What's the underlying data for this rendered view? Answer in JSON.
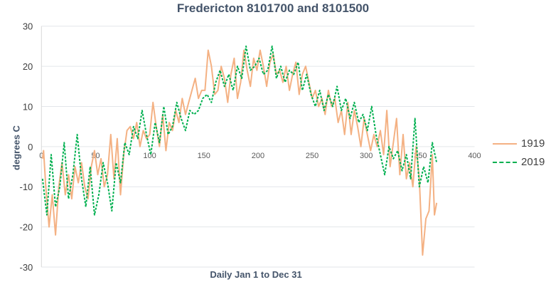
{
  "chart_data": {
    "type": "line",
    "title": "Fredericton 8101700 and 8101500",
    "xlabel": "Daily Jan 1 to Dec 31",
    "ylabel": "degrees C",
    "xlim": [
      0,
      400
    ],
    "ylim": [
      -30,
      30
    ],
    "xticks": [
      0,
      50,
      100,
      150,
      200,
      250,
      300,
      350,
      400
    ],
    "yticks": [
      -30,
      -20,
      -10,
      0,
      10,
      20,
      30
    ],
    "grid": "horizontal",
    "legend": "right",
    "series": [
      {
        "name": "1919",
        "color": "#f4b183",
        "style": "solid",
        "points": [
          [
            1,
            -3
          ],
          [
            2,
            -1
          ],
          [
            4,
            -10
          ],
          [
            7,
            -20
          ],
          [
            10,
            -12
          ],
          [
            13,
            -22
          ],
          [
            16,
            -10
          ],
          [
            19,
            -4
          ],
          [
            22,
            -12
          ],
          [
            25,
            -7
          ],
          [
            28,
            -13
          ],
          [
            31,
            -5
          ],
          [
            34,
            -9
          ],
          [
            37,
            -4
          ],
          [
            40,
            -10
          ],
          [
            43,
            -13
          ],
          [
            46,
            -5
          ],
          [
            49,
            -1
          ],
          [
            52,
            -7
          ],
          [
            55,
            -3
          ],
          [
            58,
            -10
          ],
          [
            61,
            -7
          ],
          [
            64,
            3
          ],
          [
            67,
            -8
          ],
          [
            70,
            2
          ],
          [
            73,
            -12
          ],
          [
            76,
            -2
          ],
          [
            79,
            4
          ],
          [
            82,
            5
          ],
          [
            85,
            2
          ],
          [
            88,
            6
          ],
          [
            91,
            0
          ],
          [
            94,
            4
          ],
          [
            97,
            2
          ],
          [
            100,
            3
          ],
          [
            103,
            11
          ],
          [
            106,
            5
          ],
          [
            109,
            0
          ],
          [
            112,
            8
          ],
          [
            115,
            -1
          ],
          [
            118,
            6
          ],
          [
            121,
            4
          ],
          [
            124,
            9
          ],
          [
            127,
            6
          ],
          [
            130,
            12
          ],
          [
            133,
            8
          ],
          [
            136,
            11
          ],
          [
            139,
            14
          ],
          [
            142,
            17
          ],
          [
            145,
            12
          ],
          [
            148,
            14
          ],
          [
            151,
            14
          ],
          [
            154,
            24
          ],
          [
            157,
            20
          ],
          [
            160,
            13
          ],
          [
            163,
            14
          ],
          [
            166,
            20
          ],
          [
            169,
            17
          ],
          [
            172,
            11
          ],
          [
            175,
            18
          ],
          [
            178,
            22
          ],
          [
            181,
            12
          ],
          [
            184,
            16
          ],
          [
            187,
            24
          ],
          [
            190,
            19
          ],
          [
            193,
            15
          ],
          [
            196,
            22
          ],
          [
            199,
            19
          ],
          [
            202,
            24
          ],
          [
            205,
            20
          ],
          [
            208,
            15
          ],
          [
            211,
            21
          ],
          [
            214,
            23
          ],
          [
            217,
            18
          ],
          [
            220,
            19
          ],
          [
            223,
            16
          ],
          [
            226,
            20
          ],
          [
            229,
            14
          ],
          [
            232,
            18
          ],
          [
            235,
            21
          ],
          [
            238,
            13
          ],
          [
            241,
            18
          ],
          [
            244,
            20
          ],
          [
            247,
            16
          ],
          [
            250,
            12
          ],
          [
            253,
            14
          ],
          [
            256,
            10
          ],
          [
            259,
            12
          ],
          [
            262,
            8
          ],
          [
            265,
            14
          ],
          [
            268,
            10
          ],
          [
            271,
            12
          ],
          [
            274,
            6
          ],
          [
            277,
            9
          ],
          [
            280,
            3
          ],
          [
            283,
            11
          ],
          [
            286,
            3
          ],
          [
            289,
            9
          ],
          [
            292,
            5
          ],
          [
            295,
            0
          ],
          [
            298,
            7
          ],
          [
            301,
            3
          ],
          [
            304,
            -1
          ],
          [
            307,
            3
          ],
          [
            310,
            0
          ],
          [
            313,
            4
          ],
          [
            316,
            -2
          ],
          [
            319,
            9
          ],
          [
            322,
            -5
          ],
          [
            325,
            1
          ],
          [
            328,
            7
          ],
          [
            331,
            -7
          ],
          [
            334,
            3
          ],
          [
            337,
            -8
          ],
          [
            340,
            -4
          ],
          [
            343,
            -10
          ],
          [
            346,
            0
          ],
          [
            349,
            -8
          ],
          [
            352,
            -27
          ],
          [
            355,
            -18
          ],
          [
            358,
            -16
          ],
          [
            361,
            -2
          ],
          [
            363,
            -17
          ],
          [
            365,
            -14
          ]
        ]
      },
      {
        "name": "2019",
        "color": "#00b050",
        "style": "dashed",
        "points": [
          [
            1,
            -8
          ],
          [
            5,
            -17
          ],
          [
            9,
            -2
          ],
          [
            13,
            -15
          ],
          [
            17,
            -10
          ],
          [
            21,
            1
          ],
          [
            25,
            -13
          ],
          [
            29,
            -7
          ],
          [
            33,
            3
          ],
          [
            37,
            -8
          ],
          [
            41,
            -15
          ],
          [
            45,
            -5
          ],
          [
            49,
            -17
          ],
          [
            53,
            -12
          ],
          [
            57,
            -4
          ],
          [
            61,
            -9
          ],
          [
            65,
            -16
          ],
          [
            69,
            -4
          ],
          [
            73,
            -9
          ],
          [
            77,
            1
          ],
          [
            81,
            -2
          ],
          [
            85,
            5
          ],
          [
            89,
            2
          ],
          [
            93,
            9
          ],
          [
            97,
            3
          ],
          [
            101,
            -2
          ],
          [
            105,
            6
          ],
          [
            109,
            1
          ],
          [
            113,
            10
          ],
          [
            117,
            3
          ],
          [
            121,
            5
          ],
          [
            125,
            11
          ],
          [
            129,
            7
          ],
          [
            133,
            4
          ],
          [
            137,
            9
          ],
          [
            141,
            8
          ],
          [
            145,
            9
          ],
          [
            149,
            12
          ],
          [
            153,
            13
          ],
          [
            157,
            11
          ],
          [
            161,
            16
          ],
          [
            165,
            19
          ],
          [
            169,
            15
          ],
          [
            173,
            18
          ],
          [
            177,
            14
          ],
          [
            181,
            20
          ],
          [
            185,
            17
          ],
          [
            189,
            25
          ],
          [
            193,
            19
          ],
          [
            197,
            20
          ],
          [
            201,
            22
          ],
          [
            205,
            18
          ],
          [
            209,
            19
          ],
          [
            213,
            25
          ],
          [
            217,
            17
          ],
          [
            221,
            20
          ],
          [
            225,
            16
          ],
          [
            229,
            19
          ],
          [
            233,
            18
          ],
          [
            237,
            21
          ],
          [
            241,
            14
          ],
          [
            245,
            18
          ],
          [
            249,
            13
          ],
          [
            253,
            10
          ],
          [
            257,
            14
          ],
          [
            261,
            9
          ],
          [
            265,
            13
          ],
          [
            269,
            10
          ],
          [
            273,
            15
          ],
          [
            277,
            9
          ],
          [
            281,
            12
          ],
          [
            285,
            7
          ],
          [
            289,
            11
          ],
          [
            293,
            6
          ],
          [
            297,
            8
          ],
          [
            301,
            4
          ],
          [
            305,
            10
          ],
          [
            309,
            3
          ],
          [
            313,
            -2
          ],
          [
            317,
            -7
          ],
          [
            321,
            0
          ],
          [
            325,
            -3
          ],
          [
            329,
            -1
          ],
          [
            333,
            -6
          ],
          [
            337,
            -2
          ],
          [
            341,
            -8
          ],
          [
            345,
            7
          ],
          [
            349,
            -10
          ],
          [
            353,
            -5
          ],
          [
            357,
            -9
          ],
          [
            361,
            1
          ],
          [
            365,
            -4
          ]
        ]
      }
    ]
  }
}
